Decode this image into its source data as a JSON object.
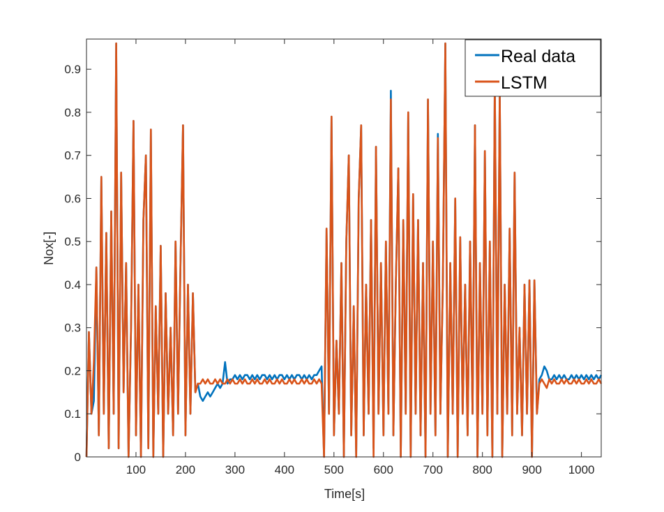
{
  "chart_data": {
    "type": "line",
    "title": "",
    "xlabel": "Time[s]",
    "ylabel": "Nox[-]",
    "xlim": [
      0,
      1040
    ],
    "ylim": [
      0,
      0.97
    ],
    "xticks": [
      100,
      200,
      300,
      400,
      500,
      600,
      700,
      800,
      900,
      1000
    ],
    "yticks": [
      0,
      0.1,
      0.2,
      0.3,
      0.4,
      0.5,
      0.6,
      0.7,
      0.8,
      0.9
    ],
    "ytick_labels": [
      "0",
      "0.1",
      "0.2",
      "0.3",
      "0.4",
      "0.5",
      "0.6",
      "0.7",
      "0.8",
      "0.9"
    ],
    "grid": false,
    "legend_position": "top-right",
    "x": [
      0,
      5,
      10,
      15,
      20,
      25,
      30,
      35,
      40,
      45,
      50,
      55,
      60,
      65,
      70,
      75,
      80,
      85,
      90,
      95,
      100,
      105,
      110,
      115,
      120,
      125,
      130,
      135,
      140,
      145,
      150,
      155,
      160,
      165,
      170,
      175,
      180,
      185,
      190,
      195,
      200,
      205,
      210,
      215,
      220,
      225,
      230,
      235,
      240,
      245,
      250,
      255,
      260,
      265,
      270,
      275,
      280,
      285,
      290,
      295,
      300,
      305,
      310,
      315,
      320,
      325,
      330,
      335,
      340,
      345,
      350,
      355,
      360,
      365,
      370,
      375,
      380,
      385,
      390,
      395,
      400,
      405,
      410,
      415,
      420,
      425,
      430,
      435,
      440,
      445,
      450,
      455,
      460,
      465,
      470,
      475,
      480,
      485,
      490,
      495,
      500,
      505,
      510,
      515,
      520,
      525,
      530,
      535,
      540,
      545,
      550,
      555,
      560,
      565,
      570,
      575,
      580,
      585,
      590,
      595,
      600,
      605,
      610,
      615,
      620,
      625,
      630,
      635,
      640,
      645,
      650,
      655,
      660,
      665,
      670,
      675,
      680,
      685,
      690,
      695,
      700,
      705,
      710,
      715,
      720,
      725,
      730,
      735,
      740,
      745,
      750,
      755,
      760,
      765,
      770,
      775,
      780,
      785,
      790,
      795,
      800,
      805,
      810,
      815,
      820,
      825,
      830,
      835,
      840,
      845,
      850,
      855,
      860,
      865,
      870,
      875,
      880,
      885,
      890,
      895,
      900,
      905,
      910,
      915,
      920,
      925,
      930,
      935,
      940,
      945,
      950,
      955,
      960,
      965,
      970,
      975,
      980,
      985,
      990,
      995,
      1000,
      1005,
      1010,
      1015,
      1020,
      1025,
      1030,
      1035,
      1040
    ],
    "series": [
      {
        "name": "Real data",
        "color": "#0072BD",
        "values": [
          0,
          0.29,
          0.1,
          0.13,
          0.44,
          0.05,
          0.65,
          0.1,
          0.52,
          0.02,
          0.57,
          0.1,
          0.96,
          0.02,
          0.66,
          0.15,
          0.45,
          0,
          0.3,
          0.78,
          0.05,
          0.4,
          0,
          0.55,
          0.7,
          0.02,
          0.76,
          0,
          0.35,
          0.1,
          0.49,
          0,
          0.38,
          0.1,
          0.3,
          0.05,
          0.5,
          0.1,
          0.45,
          0.77,
          0.05,
          0.4,
          0.1,
          0.38,
          0.15,
          0.17,
          0.14,
          0.13,
          0.14,
          0.15,
          0.14,
          0.15,
          0.16,
          0.17,
          0.16,
          0.17,
          0.22,
          0.17,
          0.18,
          0.18,
          0.19,
          0.18,
          0.19,
          0.18,
          0.19,
          0.19,
          0.18,
          0.19,
          0.18,
          0.19,
          0.18,
          0.19,
          0.19,
          0.18,
          0.19,
          0.18,
          0.19,
          0.18,
          0.19,
          0.19,
          0.18,
          0.19,
          0.18,
          0.19,
          0.18,
          0.19,
          0.19,
          0.18,
          0.19,
          0.18,
          0.19,
          0.18,
          0.19,
          0.19,
          0.2,
          0.21,
          0,
          0.53,
          0.1,
          0.79,
          0.05,
          0.27,
          0.1,
          0.45,
          0,
          0.5,
          0.7,
          0.05,
          0.35,
          0,
          0.6,
          0.77,
          0.05,
          0.4,
          0.1,
          0.55,
          0.02,
          0.72,
          0.1,
          0.45,
          0.05,
          0.5,
          0.1,
          0.85,
          0.05,
          0.4,
          0.67,
          0,
          0.55,
          0.1,
          0.8,
          0,
          0.61,
          0.1,
          0.55,
          0.05,
          0.45,
          0,
          0.83,
          0.1,
          0.5,
          0.05,
          0.75,
          0.1,
          0.4,
          0.96,
          0,
          0.45,
          0.1,
          0.6,
          0,
          0.51,
          0.1,
          0.4,
          0.05,
          0.5,
          0.1,
          0.77,
          0,
          0.45,
          0.1,
          0.71,
          0.05,
          0.5,
          0,
          0.87,
          0.1,
          0.85,
          0,
          0.4,
          0.1,
          0.53,
          0.05,
          0.66,
          0.1,
          0.3,
          0.05,
          0.4,
          0.1,
          0.41,
          0,
          0.41,
          0.1,
          0.18,
          0.19,
          0.21,
          0.2,
          0.18,
          0.18,
          0.19,
          0.18,
          0.19,
          0.18,
          0.19,
          0.18,
          0.18,
          0.19,
          0.18,
          0.19,
          0.18,
          0.19,
          0.18,
          0.19,
          0.18,
          0.19,
          0.18,
          0.19,
          0.18,
          0.19
        ]
      },
      {
        "name": "LSTM",
        "color": "#D95319",
        "values": [
          0,
          0.29,
          0.1,
          0.22,
          0.44,
          0.05,
          0.65,
          0.1,
          0.52,
          0.02,
          0.57,
          0.1,
          0.96,
          0.02,
          0.66,
          0.15,
          0.45,
          0,
          0.3,
          0.78,
          0.05,
          0.4,
          0,
          0.55,
          0.7,
          0.02,
          0.76,
          0,
          0.35,
          0.1,
          0.49,
          0,
          0.38,
          0.1,
          0.3,
          0.05,
          0.5,
          0.1,
          0.45,
          0.77,
          0.05,
          0.4,
          0.1,
          0.38,
          0.15,
          0.17,
          0.17,
          0.18,
          0.17,
          0.18,
          0.17,
          0.17,
          0.18,
          0.17,
          0.18,
          0.17,
          0.17,
          0.18,
          0.17,
          0.18,
          0.17,
          0.17,
          0.18,
          0.17,
          0.18,
          0.17,
          0.17,
          0.18,
          0.17,
          0.18,
          0.17,
          0.17,
          0.18,
          0.17,
          0.18,
          0.17,
          0.17,
          0.18,
          0.17,
          0.18,
          0.17,
          0.17,
          0.18,
          0.17,
          0.18,
          0.17,
          0.17,
          0.18,
          0.17,
          0.18,
          0.17,
          0.17,
          0.18,
          0.17,
          0.18,
          0.17,
          0,
          0.53,
          0.1,
          0.79,
          0.05,
          0.27,
          0.1,
          0.45,
          0,
          0.5,
          0.7,
          0.05,
          0.35,
          0,
          0.6,
          0.77,
          0.05,
          0.4,
          0.1,
          0.55,
          0,
          0.72,
          0.1,
          0.45,
          0.05,
          0.5,
          0.1,
          0.83,
          0.05,
          0.4,
          0.67,
          0,
          0.55,
          0.1,
          0.8,
          0,
          0.61,
          0.1,
          0.55,
          0.05,
          0.45,
          0,
          0.83,
          0.1,
          0.5,
          0.05,
          0.74,
          0.1,
          0.4,
          0.96,
          0,
          0.45,
          0.1,
          0.6,
          0,
          0.51,
          0.1,
          0.4,
          0.05,
          0.5,
          0.1,
          0.77,
          0,
          0.45,
          0.1,
          0.71,
          0.05,
          0.5,
          0,
          0.87,
          0.1,
          0.85,
          0,
          0.4,
          0.1,
          0.53,
          0.05,
          0.66,
          0.1,
          0.3,
          0.05,
          0.4,
          0.1,
          0.41,
          0,
          0.41,
          0.1,
          0.17,
          0.18,
          0.17,
          0.16,
          0.18,
          0.17,
          0.18,
          0.17,
          0.17,
          0.18,
          0.17,
          0.18,
          0.17,
          0.17,
          0.18,
          0.17,
          0.18,
          0.17,
          0.17,
          0.18,
          0.17,
          0.18,
          0.17,
          0.17,
          0.18,
          0.17
        ]
      }
    ]
  }
}
